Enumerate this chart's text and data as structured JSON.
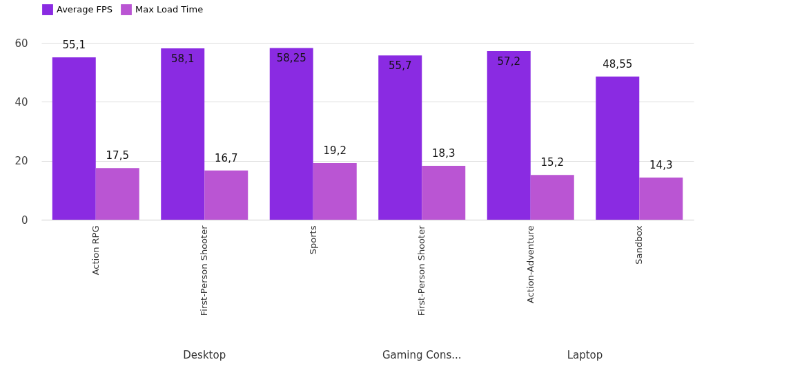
{
  "chart_data": {
    "type": "bar",
    "categories": [
      "Action RPG",
      "First-Person Shooter",
      "Sports",
      "First-Person Shooter",
      "Action-Adventure",
      "Sandbox"
    ],
    "series": [
      {
        "name": "Average FPS",
        "color": "#8a2be2",
        "values": [
          55.1,
          58.1,
          58.25,
          55.7,
          57.2,
          48.55
        ],
        "value_labels": [
          "55,1",
          "58,1",
          "58,25",
          "55,7",
          "57,2",
          "48,55"
        ]
      },
      {
        "name": "Max Load Time",
        "color": "#ba55d3",
        "values": [
          17.5,
          16.7,
          19.2,
          18.3,
          15.2,
          14.3
        ],
        "value_labels": [
          "17,5",
          "16,7",
          "19,2",
          "18,3",
          "15,2",
          "14,3"
        ]
      }
    ],
    "annotations": [
      "Desktop",
      "Gaming Cons...",
      "Laptop"
    ],
    "ylim": [
      0,
      60
    ],
    "yticks": [
      0,
      20,
      40,
      60
    ],
    "grid": "y",
    "legend": "top left"
  }
}
